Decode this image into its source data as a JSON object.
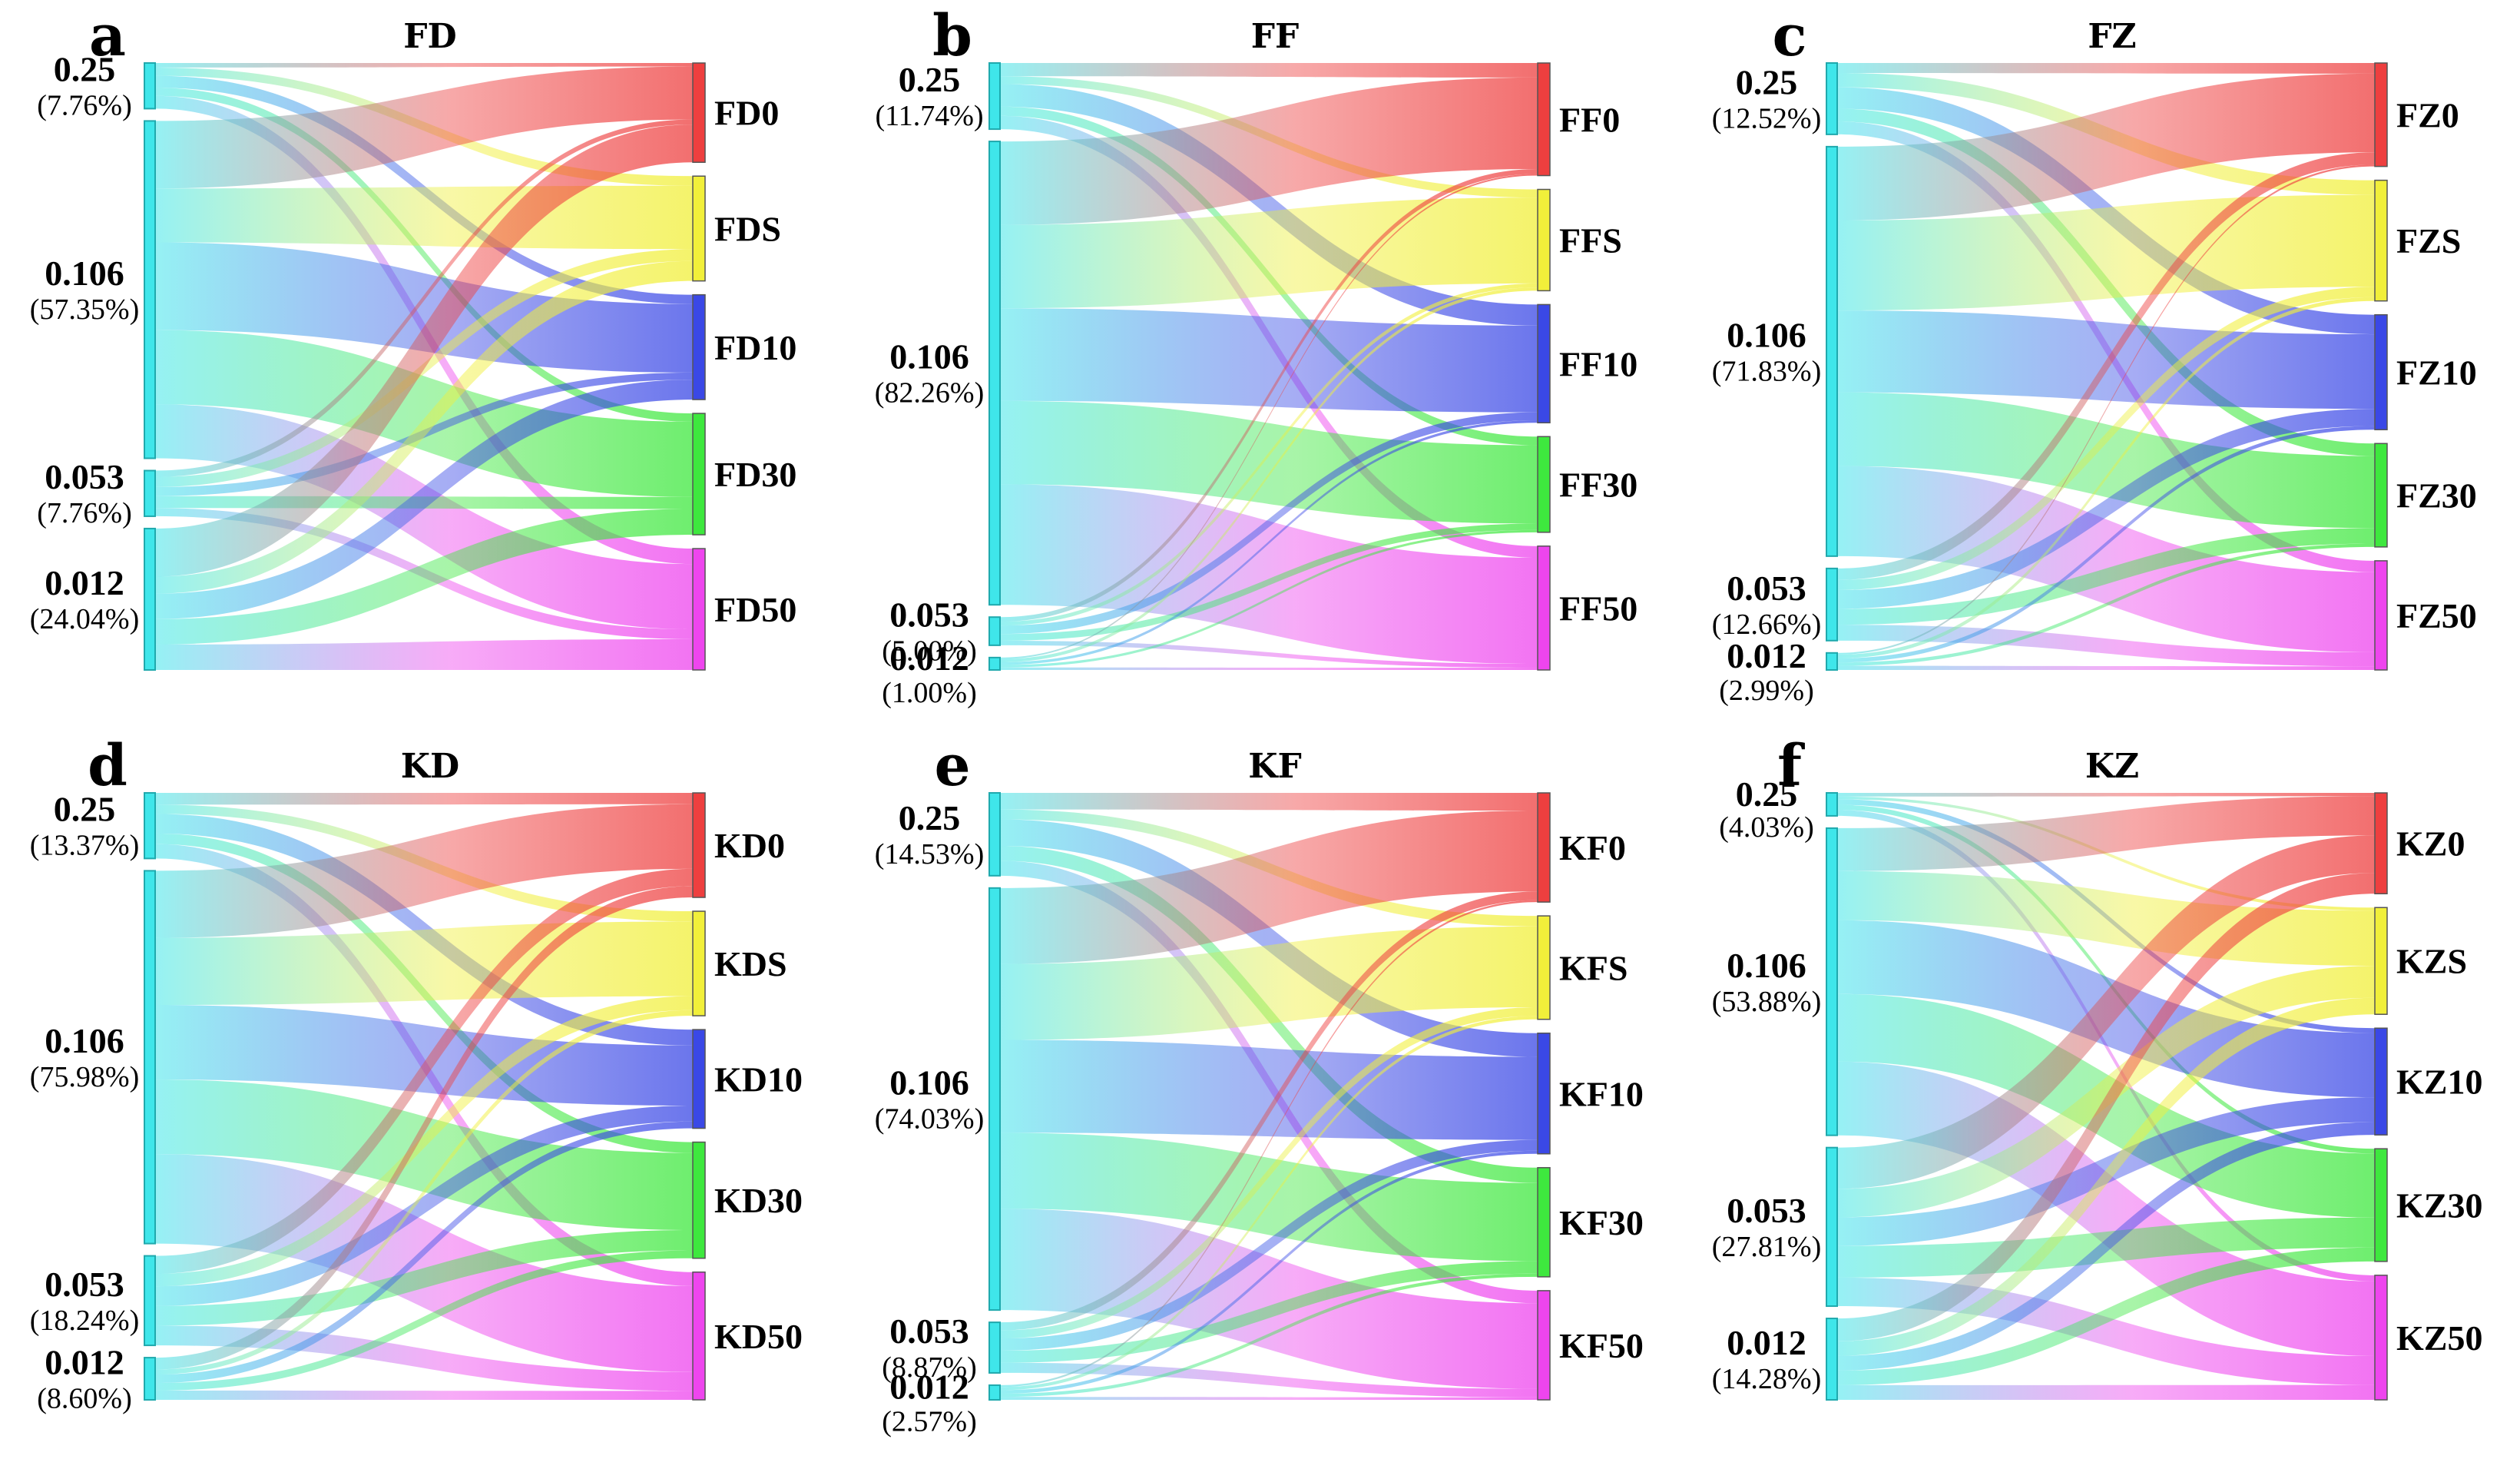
{
  "figure": {
    "description_free": true,
    "colors": {
      "source": "#3fe6ea",
      "source_stroke": "#20a9ad",
      "targets": [
        "#ee3f3f",
        "#f1ef3a",
        "#3a48e6",
        "#3ee83e",
        "#ee45ee"
      ]
    }
  },
  "chart_data": [
    {
      "type": "sankey",
      "letter": "a",
      "title": "FD",
      "sources": [
        {
          "label": "0.25",
          "percent": "(7.76%)",
          "share": 7.76
        },
        {
          "label": "0.106",
          "percent": "(57.35%)",
          "share": 57.35
        },
        {
          "label": "0.053",
          "percent": "(7.76%)",
          "share": 7.76
        },
        {
          "label": "0.012",
          "percent": "(24.04%)",
          "share": 24.04
        }
      ],
      "targets": [
        "FD0",
        "FDS",
        "FD10",
        "FD30",
        "FD50"
      ],
      "target_shares": [
        18,
        19,
        19,
        22,
        22
      ],
      "flows": [
        [
          10,
          18,
          26,
          18,
          28
        ],
        [
          20,
          16,
          26,
          22,
          16
        ],
        [
          14,
          22,
          20,
          26,
          18
        ],
        [
          34,
          12,
          18,
          18,
          18
        ]
      ]
    },
    {
      "type": "sankey",
      "letter": "b",
      "title": "FF",
      "sources": [
        {
          "label": "0.25",
          "percent": "(11.74%)",
          "share": 11.74
        },
        {
          "label": "0.106",
          "percent": "(82.26%)",
          "share": 82.26
        },
        {
          "label": "0.053",
          "percent": "(5.00%)",
          "share": 5.0
        },
        {
          "label": "0.012",
          "percent": "(1.00%)",
          "share": 1.0
        }
      ],
      "targets": [
        "FF0",
        "FFS",
        "FF10",
        "FF30",
        "FF50"
      ],
      "target_shares": [
        20,
        18,
        21,
        17,
        22
      ],
      "flows": [
        [
          20,
          12,
          34,
          14,
          20
        ],
        [
          18,
          18,
          20,
          18,
          26
        ],
        [
          16,
          14,
          30,
          24,
          16
        ],
        [
          12,
          26,
          22,
          20,
          20
        ]
      ]
    },
    {
      "type": "sankey",
      "letter": "c",
      "title": "FZ",
      "sources": [
        {
          "label": "0.25",
          "percent": "(12.52%)",
          "share": 12.52
        },
        {
          "label": "0.106",
          "percent": "(71.83%)",
          "share": 71.83
        },
        {
          "label": "0.053",
          "percent": "(12.66%)",
          "share": 12.66
        },
        {
          "label": "0.012",
          "percent": "(2.99%)",
          "share": 2.99
        }
      ],
      "targets": [
        "FZ0",
        "FZS",
        "FZ10",
        "FZ30",
        "FZ50"
      ],
      "target_shares": [
        18,
        21,
        20,
        18,
        19
      ],
      "flows": [
        [
          14,
          20,
          30,
          18,
          18
        ],
        [
          18,
          22,
          20,
          18,
          22
        ],
        [
          16,
          14,
          26,
          22,
          22
        ],
        [
          10,
          22,
          24,
          20,
          24
        ]
      ]
    },
    {
      "type": "sankey",
      "letter": "d",
      "title": "KD",
      "sources": [
        {
          "label": "0.25",
          "percent": "(13.37%)",
          "share": 13.37
        },
        {
          "label": "0.106",
          "percent": "(75.98%)",
          "share": 75.98
        },
        {
          "label": "0.053",
          "percent": "(18.24%)",
          "share": 18.24
        },
        {
          "label": "0.012",
          "percent": "(8.60%)",
          "share": 8.6
        }
      ],
      "targets": [
        "KD0",
        "KDS",
        "KD10",
        "KD30",
        "KD50"
      ],
      "target_shares": [
        18,
        18,
        17,
        20,
        22
      ],
      "flows": [
        [
          18,
          14,
          30,
          16,
          22
        ],
        [
          18,
          18,
          20,
          20,
          24
        ],
        [
          20,
          14,
          22,
          22,
          22
        ],
        [
          28,
          12,
          20,
          18,
          22
        ]
      ]
    },
    {
      "type": "sankey",
      "letter": "e",
      "title": "KF",
      "sources": [
        {
          "label": "0.25",
          "percent": "(14.53%)",
          "share": 14.53
        },
        {
          "label": "0.106",
          "percent": "(74.03%)",
          "share": 74.03
        },
        {
          "label": "0.053",
          "percent": "(8.87%)",
          "share": 8.87
        },
        {
          "label": "0.012",
          "percent": "(2.57%)",
          "share": 2.57
        }
      ],
      "targets": [
        "KF0",
        "KFS",
        "KF10",
        "KF30",
        "KF50"
      ],
      "target_shares": [
        19,
        18,
        21,
        19,
        19
      ],
      "flows": [
        [
          20,
          12,
          32,
          18,
          18
        ],
        [
          18,
          18,
          22,
          18,
          24
        ],
        [
          16,
          16,
          24,
          24,
          20
        ],
        [
          12,
          22,
          24,
          22,
          20
        ]
      ]
    },
    {
      "type": "sankey",
      "letter": "f",
      "title": "KZ",
      "sources": [
        {
          "label": "0.25",
          "percent": "(4.03%)",
          "share": 4.03
        },
        {
          "label": "0.106",
          "percent": "(53.88%)",
          "share": 53.88
        },
        {
          "label": "0.053",
          "percent": "(27.81%)",
          "share": 27.81
        },
        {
          "label": "0.012",
          "percent": "(14.28%)",
          "share": 14.28
        }
      ],
      "targets": [
        "KZ0",
        "KZS",
        "KZ10",
        "KZ30",
        "KZ50"
      ],
      "target_shares": [
        17,
        18,
        18,
        19,
        21
      ],
      "flows": [
        [
          16,
          12,
          24,
          22,
          26
        ],
        [
          14,
          16,
          24,
          22,
          24
        ],
        [
          26,
          18,
          18,
          20,
          18
        ],
        [
          28,
          18,
          18,
          18,
          18
        ]
      ]
    }
  ]
}
